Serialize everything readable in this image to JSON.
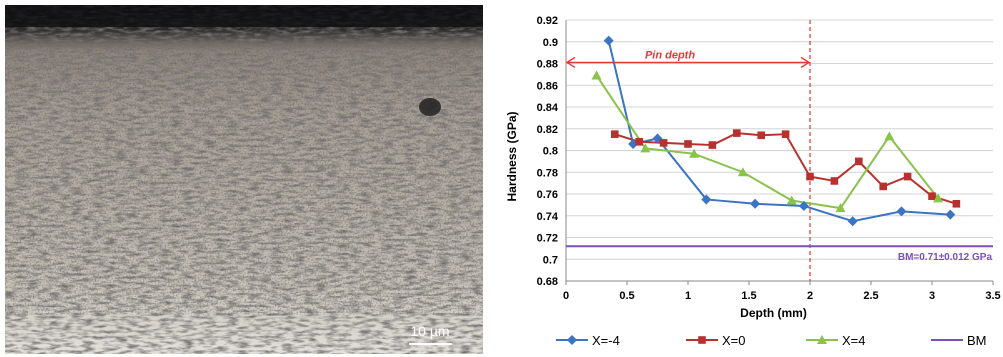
{
  "image_panel": {
    "scale_bar_label": "10 µm"
  },
  "chart_data": {
    "type": "line",
    "xlabel": "Depth (mm)",
    "ylabel": "Hardness (GPa)",
    "xlim": [
      0,
      3.5
    ],
    "ylim": [
      0.68,
      0.92
    ],
    "x_ticks": [
      0,
      0.5,
      1,
      1.5,
      2,
      2.5,
      3,
      3.5
    ],
    "y_ticks": [
      0.68,
      0.7,
      0.72,
      0.74,
      0.76,
      0.78,
      0.8,
      0.82,
      0.84,
      0.86,
      0.88,
      0.9,
      0.92
    ],
    "grid": "horizontal",
    "legend": "bottom",
    "series": [
      {
        "name": "X=-4",
        "color": "#3b74c4",
        "marker": "diamond",
        "points": [
          [
            0.35,
            0.901
          ],
          [
            0.55,
            0.806
          ],
          [
            0.75,
            0.811
          ],
          [
            1.15,
            0.755
          ],
          [
            1.55,
            0.751
          ],
          [
            1.95,
            0.749
          ],
          [
            2.35,
            0.735
          ],
          [
            2.75,
            0.744
          ],
          [
            3.15,
            0.741
          ]
        ]
      },
      {
        "name": "X=0",
        "color": "#b8312f",
        "marker": "square",
        "points": [
          [
            0.4,
            0.815
          ],
          [
            0.6,
            0.808
          ],
          [
            0.8,
            0.807
          ],
          [
            1.0,
            0.806
          ],
          [
            1.2,
            0.805
          ],
          [
            1.4,
            0.816
          ],
          [
            1.6,
            0.814
          ],
          [
            1.8,
            0.815
          ],
          [
            2.0,
            0.776
          ],
          [
            2.2,
            0.772
          ],
          [
            2.4,
            0.79
          ],
          [
            2.6,
            0.767
          ],
          [
            2.8,
            0.776
          ],
          [
            3.0,
            0.758
          ],
          [
            3.2,
            0.751
          ]
        ]
      },
      {
        "name": "X=4",
        "color": "#8ac24a",
        "marker": "triangle",
        "points": [
          [
            0.25,
            0.869
          ],
          [
            0.65,
            0.802
          ],
          [
            1.05,
            0.797
          ],
          [
            1.45,
            0.78
          ],
          [
            1.85,
            0.754
          ],
          [
            2.25,
            0.747
          ],
          [
            2.65,
            0.813
          ],
          [
            3.05,
            0.756
          ]
        ]
      },
      {
        "name": "BM",
        "color": "#7b4fb8",
        "marker": "none",
        "constant": 0.712
      }
    ],
    "annotations": {
      "pin_depth_label": "Pin depth",
      "pin_depth_range": [
        0,
        2
      ],
      "pin_depth_y": 0.881,
      "pin_depth_color": "#e03a32",
      "vline_x": 2,
      "bm_label": "BM=0.71±0.012 GPa"
    }
  }
}
